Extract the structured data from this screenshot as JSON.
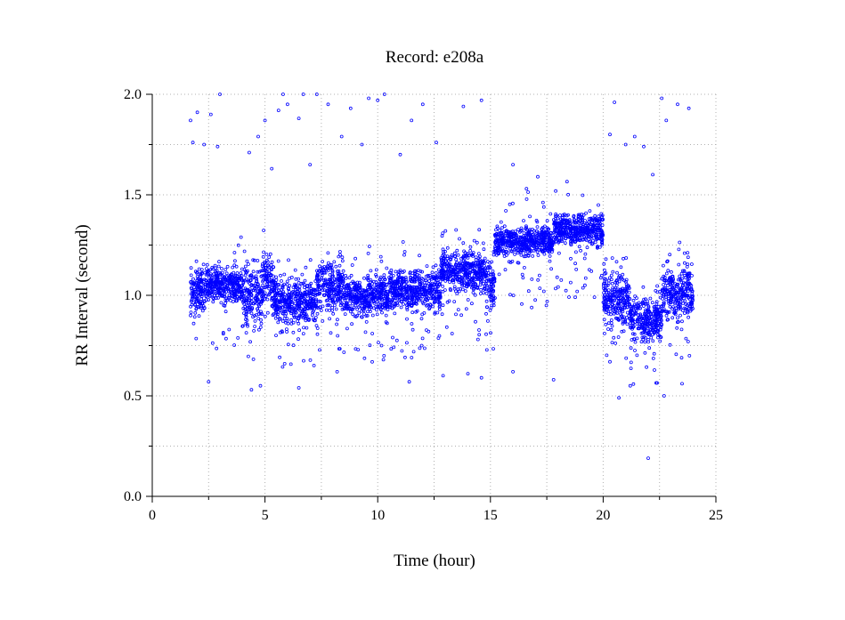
{
  "chart_data": {
    "type": "scatter",
    "title": "Record:  e208a",
    "xlabel": "Time (hour)",
    "ylabel": "RR Interval (second)",
    "xlim": [
      0,
      25
    ],
    "ylim": [
      0.0,
      2.0
    ],
    "x_ticks": [
      "0",
      "5",
      "10",
      "15",
      "20",
      "25"
    ],
    "y_ticks": [
      "0.0",
      "0.5",
      "1.0",
      "1.5",
      "2.0"
    ],
    "grid": true,
    "marker": "open-circle",
    "color": "#0000ff",
    "series": [
      {
        "segments": [
          {
            "x": [
              1.7,
              2.4
            ],
            "center": 1.02,
            "spread": 0.1
          },
          {
            "x": [
              2.4,
              4.0
            ],
            "center": 1.05,
            "spread": 0.08
          },
          {
            "x": [
              4.0,
              4.9
            ],
            "center": 1.0,
            "spread": 0.14
          },
          {
            "x": [
              4.9,
              5.4
            ],
            "center": 1.08,
            "spread": 0.12
          },
          {
            "x": [
              5.4,
              7.3
            ],
            "center": 0.97,
            "spread": 0.1
          },
          {
            "x": [
              7.3,
              8.5
            ],
            "center": 1.05,
            "spread": 0.1
          },
          {
            "x": [
              8.5,
              10.5
            ],
            "center": 1.0,
            "spread": 0.08
          },
          {
            "x": [
              10.5,
              12.8
            ],
            "center": 1.03,
            "spread": 0.09
          },
          {
            "x": [
              12.8,
              14.8
            ],
            "center": 1.12,
            "spread": 0.09
          },
          {
            "x": [
              14.8,
              15.2
            ],
            "center": 1.05,
            "spread": 0.1
          },
          {
            "x": [
              15.2,
              17.8
            ],
            "center": 1.27,
            "spread": 0.06
          },
          {
            "x": [
              17.8,
              20.0
            ],
            "center": 1.33,
            "spread": 0.07
          },
          {
            "x": [
              20.0,
              21.2
            ],
            "center": 0.98,
            "spread": 0.12
          },
          {
            "x": [
              21.2,
              22.6
            ],
            "center": 0.88,
            "spread": 0.09
          },
          {
            "x": [
              22.6,
              24.0
            ],
            "center": 1.02,
            "spread": 0.12
          }
        ],
        "outliers": [
          [
            1.7,
            1.87
          ],
          [
            1.8,
            1.76
          ],
          [
            2.0,
            1.91
          ],
          [
            2.3,
            1.75
          ],
          [
            2.6,
            1.9
          ],
          [
            2.9,
            1.74
          ],
          [
            3.0,
            2.0
          ],
          [
            4.3,
            1.71
          ],
          [
            4.7,
            1.79
          ],
          [
            5.0,
            1.87
          ],
          [
            5.3,
            1.63
          ],
          [
            5.6,
            1.92
          ],
          [
            5.8,
            2.0
          ],
          [
            6.0,
            1.95
          ],
          [
            6.5,
            1.88
          ],
          [
            6.7,
            2.0
          ],
          [
            7.0,
            1.65
          ],
          [
            7.3,
            2.0
          ],
          [
            7.8,
            1.95
          ],
          [
            8.4,
            1.79
          ],
          [
            8.8,
            1.93
          ],
          [
            9.3,
            1.75
          ],
          [
            9.6,
            1.98
          ],
          [
            10.0,
            1.97
          ],
          [
            10.3,
            2.0
          ],
          [
            11.0,
            1.7
          ],
          [
            11.5,
            1.87
          ],
          [
            12.0,
            1.95
          ],
          [
            12.6,
            1.76
          ],
          [
            13.8,
            1.94
          ],
          [
            14.6,
            1.97
          ],
          [
            16.0,
            1.65
          ],
          [
            16.6,
            1.53
          ],
          [
            17.1,
            1.59
          ],
          [
            20.3,
            1.8
          ],
          [
            20.5,
            1.96
          ],
          [
            21.0,
            1.75
          ],
          [
            21.4,
            1.79
          ],
          [
            21.8,
            1.74
          ],
          [
            22.2,
            1.6
          ],
          [
            22.6,
            1.98
          ],
          [
            22.8,
            1.87
          ],
          [
            23.3,
            1.95
          ],
          [
            23.8,
            1.93
          ],
          [
            2.5,
            0.57
          ],
          [
            4.4,
            0.53
          ],
          [
            4.8,
            0.55
          ],
          [
            6.5,
            0.54
          ],
          [
            8.2,
            0.62
          ],
          [
            11.4,
            0.57
          ],
          [
            12.9,
            0.6
          ],
          [
            14.0,
            0.61
          ],
          [
            14.6,
            0.59
          ],
          [
            16.0,
            0.62
          ],
          [
            17.8,
            0.58
          ],
          [
            20.7,
            0.49
          ],
          [
            21.2,
            0.55
          ],
          [
            22.0,
            0.19
          ],
          [
            22.7,
            0.5
          ],
          [
            23.5,
            0.56
          ]
        ]
      }
    ]
  }
}
